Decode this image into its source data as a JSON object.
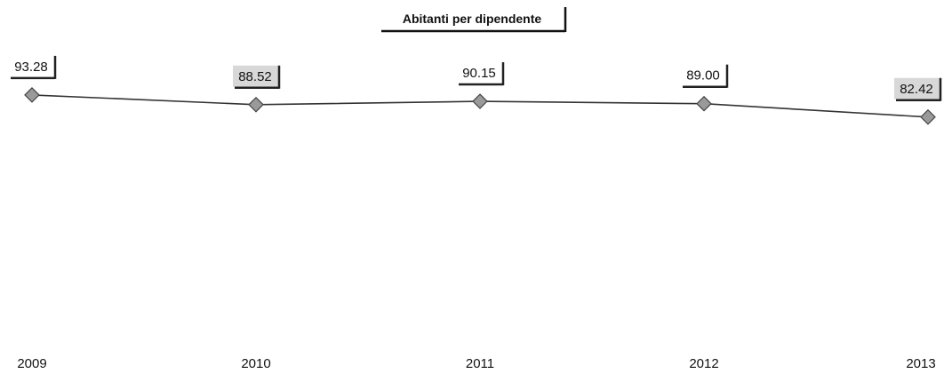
{
  "chart_data": {
    "type": "line",
    "title": "Abitanti per dipendente",
    "xlabel": "",
    "ylabel": "",
    "categories": [
      "2009",
      "2010",
      "2011",
      "2012",
      "2013"
    ],
    "values": [
      93.28,
      88.52,
      90.15,
      89.0,
      82.42
    ],
    "data_labels": [
      "93.28",
      "88.52",
      "90.15",
      "89.00",
      "82.42"
    ],
    "ylim": [
      0,
      100
    ],
    "grid": false,
    "legend": "none",
    "colors": {
      "line": "#333333",
      "marker": "#9a9a9a",
      "text": "#111111",
      "label_shadow": "#222222",
      "label_fill_muted": "#d8d8d8"
    }
  }
}
